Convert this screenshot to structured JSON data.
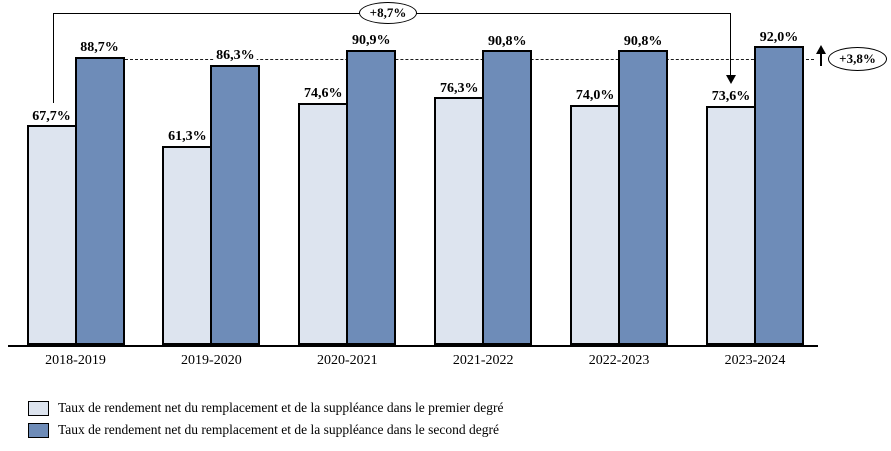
{
  "chart_data": {
    "type": "bar",
    "categories": [
      "2018-2019",
      "2019-2020",
      "2020-2021",
      "2021-2022",
      "2022-2023",
      "2023-2024"
    ],
    "series": [
      {
        "name": "Taux de rendement net du remplacement et de la suppléance dans le premier degré",
        "color": "#dde4ef",
        "values": [
          67.7,
          61.3,
          74.6,
          76.3,
          74.0,
          73.6
        ],
        "labels": [
          "67,7%",
          "61,3%",
          "74,6%",
          "76,3%",
          "74,0%",
          "73,6%"
        ]
      },
      {
        "name": "Taux de rendement net du remplacement et de la suppléance dans le second degré",
        "color": "#6e8cb8",
        "values": [
          88.7,
          86.3,
          90.9,
          90.8,
          90.8,
          92.0
        ],
        "labels": [
          "88,7%",
          "86,3%",
          "90,9%",
          "90,8%",
          "90,8%",
          "92,0%"
        ]
      }
    ],
    "title": "",
    "xlabel": "",
    "ylabel": "",
    "ylim": [
      0,
      107
    ],
    "grid": false,
    "legend_position": "bottom-left",
    "reference_line": {
      "style": "dashed",
      "value": 88.7
    },
    "annotations": {
      "premier_degre_evolution": "+8,7%",
      "second_degre_evolution": "+3,8%"
    }
  }
}
